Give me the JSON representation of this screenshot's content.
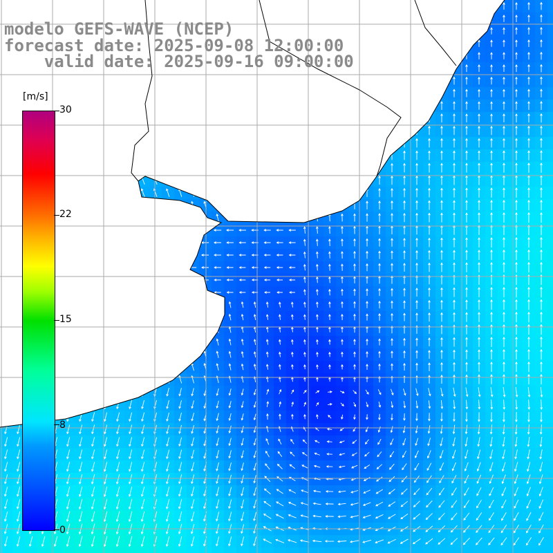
{
  "title": {
    "line1": "modelo GEFS-WAVE (NCEP)",
    "line2": "forecast date: 2025-09-08 12:00:00",
    "line3": "    valid date: 2025-09-16 09:00:00"
  },
  "colorbar": {
    "unit": "[m/s]",
    "min": 0,
    "max": 30,
    "ticks": [
      "30",
      "22",
      "15",
      "8",
      "0"
    ]
  },
  "map": {
    "region": "South Atlantic off Rio de la Plata / southern Brazil",
    "field": "wind speed with direction arrows",
    "gridlines": true,
    "colors": {
      "calm": "#0000ff",
      "moderate": "#00b4ff",
      "land": "#ffffff",
      "coast": "#000000",
      "grid": "#aaaaaa",
      "arrows": "#ffffff"
    }
  }
}
